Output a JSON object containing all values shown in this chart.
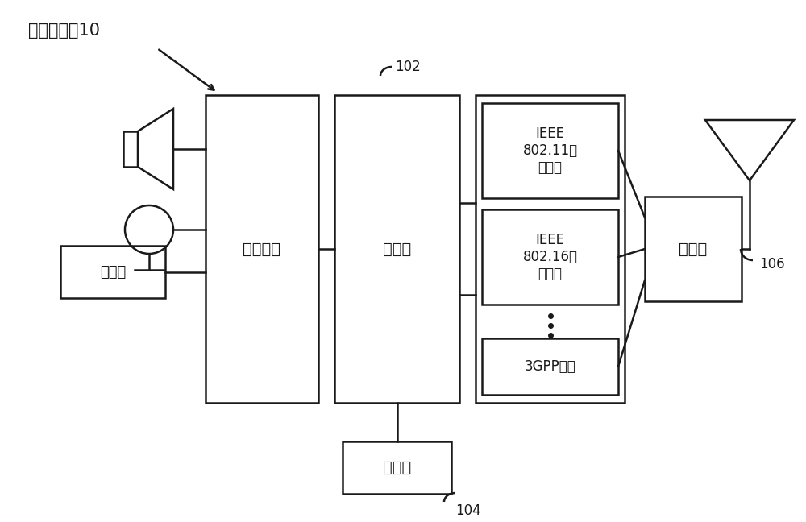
{
  "bg_color": "#ffffff",
  "line_color": "#1a1a1a",
  "text_color": "#1a1a1a",
  "font_size_title": 14,
  "font_size_label": 13,
  "font_size_small": 11,
  "font_size_annot": 12,
  "title_text": "计算机终端10",
  "user_interface_label": "用户接口",
  "processor_label": "处理器",
  "ieee80211_label": "IEEE\n802.11网\n络接口",
  "ieee80216_label": "IEEE\n802.16网\n络接口",
  "gpp3_label": "3GPP接口",
  "coupler_label": "耦合器",
  "memory_label": "存储器",
  "display_label": "显示器",
  "label_102": "102",
  "label_104": "104",
  "label_106": "106"
}
